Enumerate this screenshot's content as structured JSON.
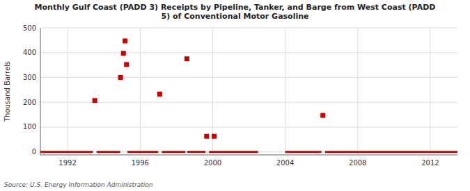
{
  "chart_data": {
    "type": "scatter",
    "title": "Monthly Gulf Coast (PADD 3) Receipts by Pipeline, Tanker, and Barge from West Coast (PADD\n5) of Conventional Motor Gasoline",
    "ylabel": "Thousand Barrels",
    "annotations": [
      "Source: U.S. Energy Information Administration"
    ],
    "xlim": [
      1990.5,
      2013.5
    ],
    "ylim": [
      -12,
      500
    ],
    "xticks": [
      1992,
      1996,
      2000,
      2004,
      2008,
      2012
    ],
    "yticks": [
      0,
      100,
      200,
      300,
      400,
      500
    ],
    "grid": true,
    "series": [
      {
        "type": "scatter",
        "color": "#cc0000",
        "marker": "square",
        "x": [
          1993.5,
          1994.92,
          1995.08,
          1995.17,
          1995.25,
          1997.08,
          1998.58,
          1999.67,
          2000.08,
          2006.08
        ],
        "values": [
          207,
          300,
          397,
          447,
          352,
          233,
          375,
          63,
          63,
          147
        ]
      },
      {
        "type": "line",
        "color": "#cc0000",
        "x": [
          1990.5,
          1993.4
        ],
        "values": [
          0,
          0
        ]
      },
      {
        "type": "line",
        "color": "#cc0000",
        "x": [
          1993.6,
          1994.9
        ],
        "values": [
          0,
          0
        ]
      },
      {
        "type": "line",
        "color": "#cc0000",
        "x": [
          1995.3,
          1997.0
        ],
        "values": [
          0,
          0
        ]
      },
      {
        "type": "line",
        "color": "#cc0000",
        "x": [
          1997.2,
          1998.5
        ],
        "values": [
          0,
          0
        ]
      },
      {
        "type": "line",
        "color": "#cc0000",
        "x": [
          1998.6,
          1999.6
        ],
        "values": [
          0,
          0
        ]
      },
      {
        "type": "line",
        "color": "#cc0000",
        "x": [
          1999.8,
          2002.5
        ],
        "values": [
          0,
          0
        ]
      },
      {
        "type": "line",
        "color": "#cc0000",
        "x": [
          2004.0,
          2006.0
        ],
        "values": [
          0,
          0
        ]
      },
      {
        "type": "line",
        "color": "#cc0000",
        "x": [
          2006.2,
          2013.5
        ],
        "values": [
          0,
          0
        ]
      }
    ]
  }
}
